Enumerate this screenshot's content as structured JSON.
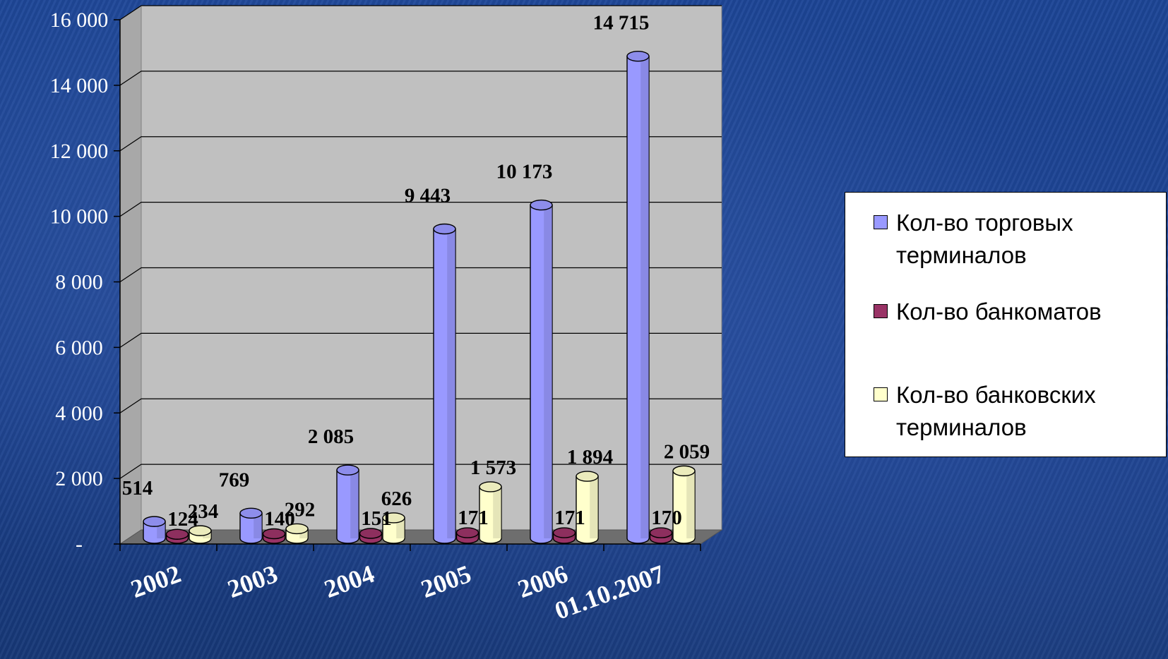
{
  "chart_data": {
    "type": "bar",
    "categories": [
      "2002",
      "2003",
      "2004",
      "2005",
      "2006",
      "01.10.2007"
    ],
    "series": [
      {
        "name": "Кол-во торговых терминалов",
        "values": [
          514,
          769,
          2085,
          9443,
          10173,
          14715
        ],
        "labels": [
          "514",
          "769",
          "2 085",
          "9 443",
          "10 173",
          "14 715"
        ],
        "color": "#9999ff"
      },
      {
        "name": "Кол-во банкоматов",
        "values": [
          124,
          140,
          151,
          171,
          171,
          170
        ],
        "labels": [
          "124",
          "140",
          "151",
          "171",
          "171",
          "170"
        ],
        "color": "#993366"
      },
      {
        "name": "Кол-во банковских терминалов",
        "values": [
          234,
          292,
          626,
          1573,
          1894,
          2059
        ],
        "labels": [
          "234",
          "292",
          "626",
          "1 573",
          "1 894",
          "2 059"
        ],
        "color": "#ffffcc"
      }
    ],
    "y_ticks": [
      {
        "value": 0,
        "label": "-"
      },
      {
        "value": 2000,
        "label": "2 000"
      },
      {
        "value": 4000,
        "label": "4 000"
      },
      {
        "value": 6000,
        "label": "6 000"
      },
      {
        "value": 8000,
        "label": "8 000"
      },
      {
        "value": 10000,
        "label": "10 000"
      },
      {
        "value": 12000,
        "label": "12 000"
      },
      {
        "value": 14000,
        "label": "14 000"
      },
      {
        "value": 16000,
        "label": "16 000"
      }
    ],
    "ylim": [
      0,
      16000
    ],
    "grid": true,
    "legend_position": "right"
  }
}
